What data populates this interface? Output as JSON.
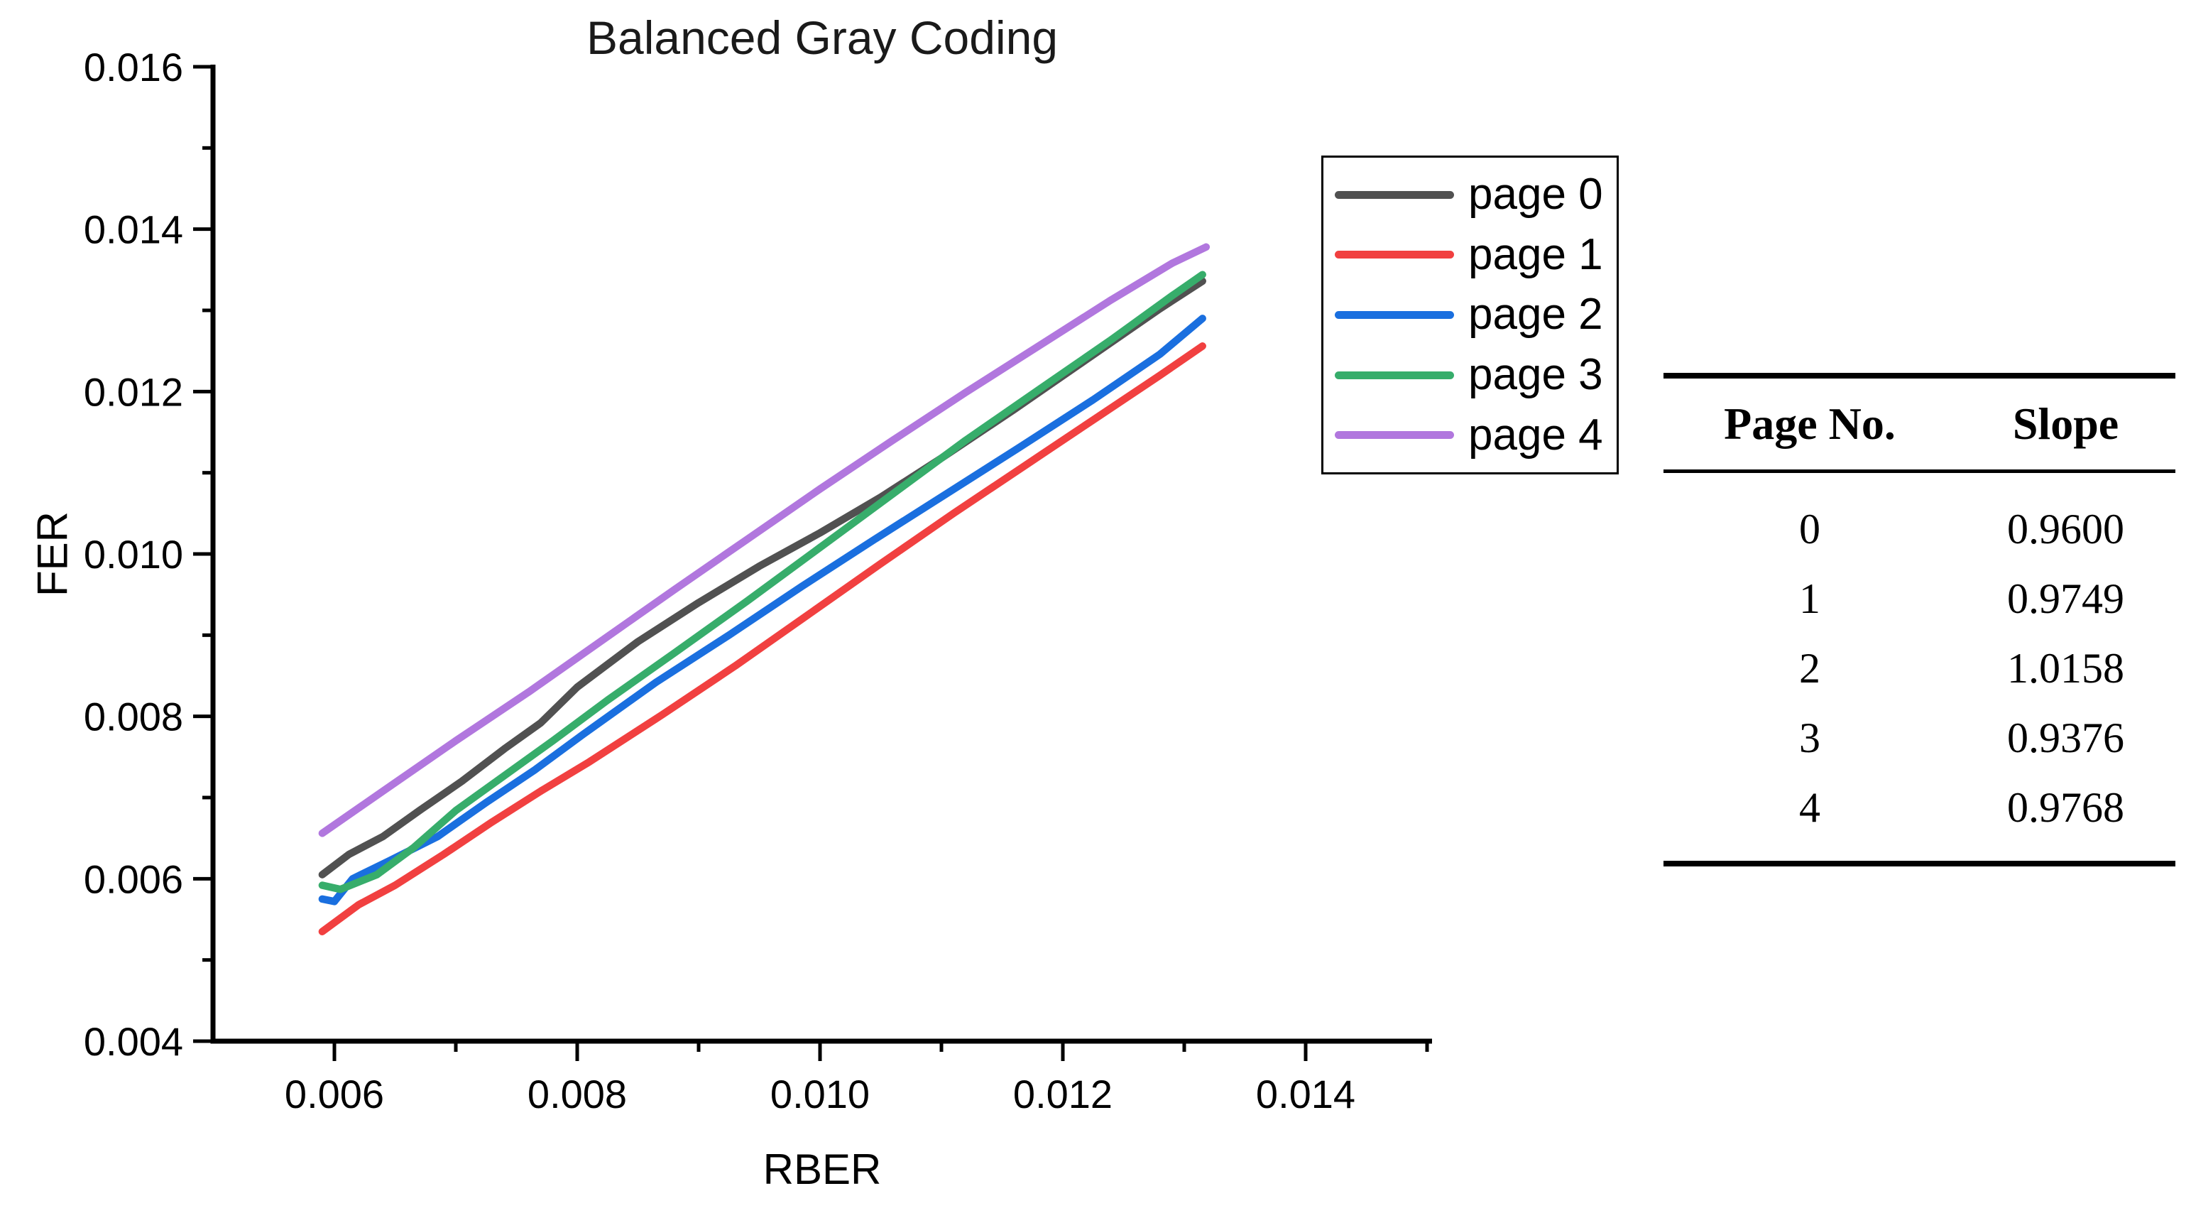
{
  "title": "Balanced Gray Coding",
  "axes": {
    "x_label": "RBER",
    "y_label": "FER"
  },
  "legend": {
    "items": [
      {
        "label": "page 0",
        "color": "#515151"
      },
      {
        "label": "page 1",
        "color": "#F14040"
      },
      {
        "label": "page 2",
        "color": "#1A6FDF"
      },
      {
        "label": "page 3",
        "color": "#37AD6B"
      },
      {
        "label": "page 4",
        "color": "#B177DE"
      }
    ]
  },
  "slope_table": {
    "headers": [
      "Page No.",
      "Slope"
    ],
    "rows": [
      [
        "0",
        "0.9600"
      ],
      [
        "1",
        "0.9749"
      ],
      [
        "2",
        "1.0158"
      ],
      [
        "3",
        "0.9376"
      ],
      [
        "4",
        "0.9768"
      ]
    ]
  },
  "chart_data": {
    "type": "line",
    "title": "Balanced Gray Coding",
    "xlabel": "RBER",
    "ylabel": "FER",
    "xlim": [
      0.005,
      0.015
    ],
    "ylim": [
      0.004,
      0.016
    ],
    "x_tick_values": [
      0.006,
      0.008,
      0.01,
      0.012,
      0.014
    ],
    "x_tick_labels": [
      "0.006",
      "0.008",
      "0.010",
      "0.012",
      "0.014"
    ],
    "x_minor_ticks": [
      0.007,
      0.009,
      0.011,
      0.013,
      0.015
    ],
    "y_tick_values": [
      0.004,
      0.006,
      0.008,
      0.01,
      0.012,
      0.014,
      0.016
    ],
    "y_tick_labels": [
      "0.004",
      "0.006",
      "0.008",
      "0.010",
      "0.012",
      "0.014",
      "0.016"
    ],
    "y_minor_ticks": [
      0.005,
      0.007,
      0.009,
      0.011,
      0.013,
      0.015
    ],
    "grid": false,
    "legend_position": "boxed, upper right of plot",
    "series": [
      {
        "name": "page 0",
        "color": "#515151",
        "points": [
          [
            0.0059,
            0.00605
          ],
          [
            0.00612,
            0.0063
          ],
          [
            0.0064,
            0.00652
          ],
          [
            0.0067,
            0.00684
          ],
          [
            0.00705,
            0.0072
          ],
          [
            0.0074,
            0.0076
          ],
          [
            0.0077,
            0.00792
          ],
          [
            0.008,
            0.00836
          ],
          [
            0.0085,
            0.00892
          ],
          [
            0.009,
            0.0094
          ],
          [
            0.0095,
            0.00985
          ],
          [
            0.01,
            0.01026
          ],
          [
            0.0105,
            0.0107
          ],
          [
            0.011,
            0.01118
          ],
          [
            0.0116,
            0.01178
          ],
          [
            0.0122,
            0.0124
          ],
          [
            0.0128,
            0.01302
          ],
          [
            0.01315,
            0.01336
          ]
        ]
      },
      {
        "name": "page 1",
        "color": "#F14040",
        "points": [
          [
            0.0059,
            0.00535
          ],
          [
            0.0062,
            0.00568
          ],
          [
            0.0065,
            0.00592
          ],
          [
            0.0069,
            0.0063
          ],
          [
            0.0073,
            0.0067
          ],
          [
            0.0077,
            0.00708
          ],
          [
            0.0081,
            0.00744
          ],
          [
            0.0087,
            0.00802
          ],
          [
            0.0093,
            0.00862
          ],
          [
            0.0099,
            0.00925
          ],
          [
            0.0105,
            0.00988
          ],
          [
            0.0111,
            0.0105
          ],
          [
            0.0117,
            0.0111
          ],
          [
            0.0123,
            0.0117
          ],
          [
            0.0128,
            0.0122
          ],
          [
            0.01315,
            0.01256
          ]
        ]
      },
      {
        "name": "page 2",
        "color": "#1A6FDF",
        "points": [
          [
            0.0059,
            0.00575
          ],
          [
            0.006,
            0.00572
          ],
          [
            0.00615,
            0.006
          ],
          [
            0.00645,
            0.00622
          ],
          [
            0.00685,
            0.00652
          ],
          [
            0.00725,
            0.00694
          ],
          [
            0.00765,
            0.00734
          ],
          [
            0.00805,
            0.00778
          ],
          [
            0.00865,
            0.00842
          ],
          [
            0.00925,
            0.009
          ],
          [
            0.00985,
            0.0096
          ],
          [
            0.01045,
            0.01018
          ],
          [
            0.01105,
            0.01075
          ],
          [
            0.01165,
            0.01132
          ],
          [
            0.01225,
            0.0119
          ],
          [
            0.0128,
            0.01246
          ],
          [
            0.01315,
            0.0129
          ]
        ]
      },
      {
        "name": "page 3",
        "color": "#37AD6B",
        "points": [
          [
            0.0059,
            0.00592
          ],
          [
            0.00605,
            0.00587
          ],
          [
            0.00635,
            0.00605
          ],
          [
            0.00665,
            0.00638
          ],
          [
            0.007,
            0.00684
          ],
          [
            0.0074,
            0.00727
          ],
          [
            0.0078,
            0.0077
          ],
          [
            0.00825,
            0.0082
          ],
          [
            0.0088,
            0.00878
          ],
          [
            0.0094,
            0.00942
          ],
          [
            0.01,
            0.01008
          ],
          [
            0.0106,
            0.01074
          ],
          [
            0.0112,
            0.0114
          ],
          [
            0.0118,
            0.01202
          ],
          [
            0.0124,
            0.01264
          ],
          [
            0.0129,
            0.01318
          ],
          [
            0.01315,
            0.01344
          ]
        ]
      },
      {
        "name": "page 4",
        "color": "#B177DE",
        "points": [
          [
            0.0059,
            0.00656
          ],
          [
            0.0064,
            0.00708
          ],
          [
            0.007,
            0.0077
          ],
          [
            0.0076,
            0.0083
          ],
          [
            0.0082,
            0.00893
          ],
          [
            0.0088,
            0.00956
          ],
          [
            0.0094,
            0.01018
          ],
          [
            0.01,
            0.0108
          ],
          [
            0.0106,
            0.0114
          ],
          [
            0.0112,
            0.01199
          ],
          [
            0.0118,
            0.01256
          ],
          [
            0.0124,
            0.01313
          ],
          [
            0.0129,
            0.01358
          ],
          [
            0.01318,
            0.01378
          ]
        ]
      }
    ]
  }
}
